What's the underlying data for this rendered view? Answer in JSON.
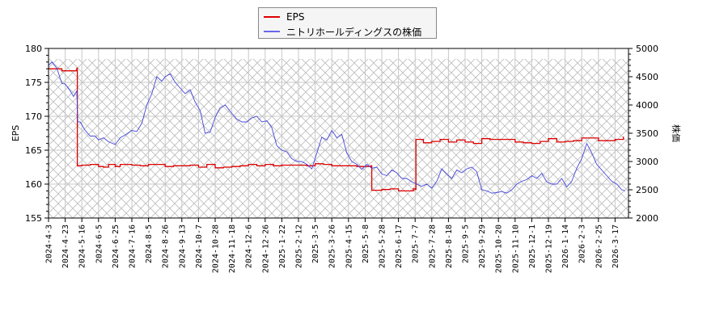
{
  "legend": {
    "items": [
      {
        "label": "EPS",
        "color": "#dd0000"
      },
      {
        "label": "ニトリホールディングスの株価",
        "color": "#6666ee"
      }
    ]
  },
  "axes": {
    "left_label": "EPS",
    "right_label": "株価"
  },
  "chart_data": {
    "type": "line",
    "title": "",
    "xlabel": "",
    "ylabel": "EPS",
    "y2label": "株価",
    "ylim": [
      155,
      180
    ],
    "y2lim": [
      2000,
      5000
    ],
    "yticks": [
      155,
      160,
      165,
      170,
      175,
      180
    ],
    "y2ticks": [
      2000,
      2500,
      3000,
      3500,
      4000,
      4500,
      5000
    ],
    "grid": true,
    "legend_position": "top-center",
    "x_ticks": [
      "2024-4-3",
      "2024-4-23",
      "2024-5-16",
      "2024-6-5",
      "2024-6-25",
      "2024-7-16",
      "2024-8-5",
      "2024-8-26",
      "2024-9-13",
      "2024-10-7",
      "2024-10-28",
      "2024-11-18",
      "2024-12-6",
      "2024-12-26",
      "2025-1-22",
      "2025-2-12",
      "2025-3-5",
      "2025-3-26",
      "2025-4-15",
      "2025-5-8",
      "2025-5-28",
      "2025-6-17",
      "2025-7-7",
      "2025-7-28",
      "2025-8-18",
      "2025-9-5",
      "2025-9-29",
      "2025-10-20",
      "2025-11-10",
      "2025-12-1",
      "2025-12-19",
      "2026-1-14",
      "2026-2-3",
      "2026-2-25",
      "2026-3-17"
    ],
    "series": [
      {
        "name": "EPS",
        "axis": "left",
        "color": "#dd0000",
        "x_index": [
          0,
          0.3,
          0.8,
          1.0,
          1.5,
          1.7,
          1.73,
          2.0,
          2.5,
          3.0,
          3.3,
          3.6,
          4.0,
          4.3,
          5.0,
          5.5,
          6.0,
          6.5,
          7.0,
          7.5,
          8.0,
          8.5,
          9.0,
          9.5,
          10.0,
          10.5,
          11.0,
          11.5,
          12.0,
          12.5,
          13.0,
          13.5,
          14.0,
          14.5,
          15.0,
          15.5,
          16.0,
          16.5,
          17.0,
          17.5,
          18.0,
          18.5,
          19.0,
          19.35,
          19.4,
          20.0,
          20.5,
          21.0,
          21.5,
          21.9,
          22.0,
          22.05,
          22.5,
          23.0,
          23.5,
          24.0,
          24.5,
          25.0,
          25.5,
          26.0,
          26.5,
          27.0,
          27.5,
          28.0,
          28.5,
          29.0,
          29.5,
          30.0,
          30.5,
          31.0,
          31.5,
          32.0,
          32.5,
          33.0,
          33.5,
          34.0,
          34.5
        ],
        "values": [
          177,
          177,
          176.7,
          176.7,
          176.7,
          177.1,
          162.7,
          162.8,
          162.9,
          162.6,
          162.5,
          162.9,
          162.6,
          162.9,
          162.8,
          162.7,
          162.9,
          162.9,
          162.6,
          162.7,
          162.7,
          162.8,
          162.5,
          162.9,
          162.4,
          162.5,
          162.6,
          162.7,
          162.9,
          162.7,
          162.9,
          162.7,
          162.8,
          162.8,
          162.8,
          162.7,
          163.0,
          162.9,
          162.7,
          162.7,
          162.7,
          162.6,
          162.6,
          162.7,
          159.1,
          159.2,
          159.3,
          159.0,
          159.0,
          159.3,
          159.2,
          166.6,
          166.1,
          166.3,
          166.6,
          166.2,
          166.5,
          166.2,
          166.0,
          166.7,
          166.6,
          166.6,
          166.6,
          166.2,
          166.1,
          166.0,
          166.3,
          166.7,
          166.2,
          166.3,
          166.4,
          166.8,
          166.8,
          166.4,
          166.4,
          166.6,
          167.0
        ]
      },
      {
        "name": "ニトリホールディングスの株価",
        "axis": "right",
        "color": "#4444dd",
        "x_index": [
          0,
          0.2,
          0.5,
          0.8,
          1.0,
          1.3,
          1.5,
          1.7,
          1.75,
          1.9,
          2.2,
          2.5,
          2.8,
          3.0,
          3.3,
          3.6,
          4.0,
          4.3,
          4.6,
          5.0,
          5.3,
          5.6,
          5.9,
          6.2,
          6.5,
          6.8,
          7.0,
          7.3,
          7.6,
          7.9,
          8.2,
          8.5,
          8.8,
          9.1,
          9.4,
          9.7,
          10.0,
          10.3,
          10.6,
          11.0,
          11.3,
          11.6,
          11.9,
          12.2,
          12.5,
          12.8,
          13.1,
          13.4,
          13.7,
          14.0,
          14.3,
          14.6,
          14.9,
          15.2,
          15.5,
          15.8,
          16.1,
          16.4,
          16.7,
          17.0,
          17.3,
          17.6,
          17.9,
          18.2,
          18.5,
          18.8,
          19.1,
          19.4,
          19.7,
          20.0,
          20.3,
          20.6,
          20.9,
          21.2,
          21.5,
          21.8,
          22.1,
          22.4,
          22.7,
          23.0,
          23.3,
          23.6,
          23.9,
          24.2,
          24.5,
          24.8,
          25.1,
          25.4,
          25.7,
          26.0,
          26.3,
          26.6,
          26.9,
          27.2,
          27.5,
          27.8,
          28.1,
          28.4,
          28.7,
          29.0,
          29.3,
          29.6,
          29.9,
          30.2,
          30.5,
          30.8,
          31.1,
          31.4,
          31.7,
          32.0,
          32.3,
          32.6,
          32.9,
          33.2,
          33.5,
          33.8,
          34.1,
          34.4,
          34.6
        ],
        "values": [
          4700,
          4760,
          4650,
          4380,
          4370,
          4250,
          4150,
          4250,
          3700,
          3700,
          3550,
          3450,
          3450,
          3380,
          3420,
          3350,
          3300,
          3420,
          3470,
          3550,
          3530,
          3680,
          4000,
          4200,
          4500,
          4420,
          4500,
          4550,
          4400,
          4300,
          4200,
          4270,
          4050,
          3900,
          3500,
          3520,
          3780,
          3950,
          4000,
          3850,
          3750,
          3700,
          3700,
          3770,
          3800,
          3700,
          3720,
          3600,
          3280,
          3200,
          3170,
          3050,
          3000,
          3000,
          2950,
          2870,
          3150,
          3430,
          3380,
          3550,
          3420,
          3480,
          3150,
          3000,
          2950,
          2860,
          2950,
          2880,
          2900,
          2780,
          2750,
          2850,
          2800,
          2700,
          2700,
          2640,
          2600,
          2560,
          2600,
          2530,
          2650,
          2870,
          2780,
          2700,
          2850,
          2800,
          2870,
          2900,
          2820,
          2500,
          2480,
          2440,
          2450,
          2470,
          2440,
          2500,
          2600,
          2650,
          2680,
          2750,
          2700,
          2790,
          2640,
          2600,
          2600,
          2700,
          2550,
          2650,
          2880,
          3050,
          3320,
          3150,
          2950,
          2850,
          2750,
          2650,
          2600,
          2500,
          2480
        ]
      }
    ]
  }
}
